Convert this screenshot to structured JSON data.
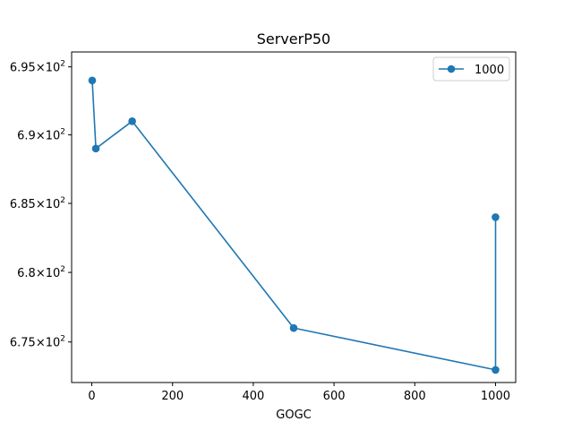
{
  "chart_data": {
    "type": "line",
    "title": "ServerP50",
    "xlabel": "GOGC",
    "ylabel": "",
    "x_ticks": [
      "0",
      "200",
      "400",
      "600",
      "800",
      "1000"
    ],
    "y_ticks": [
      {
        "mantissa": "6.75",
        "base": "10",
        "exp": "2",
        "value": 675
      },
      {
        "mantissa": "6.8",
        "base": "10",
        "exp": "2",
        "value": 680
      },
      {
        "mantissa": "6.85",
        "base": "10",
        "exp": "2",
        "value": 685
      },
      {
        "mantissa": "6.9",
        "base": "10",
        "exp": "2",
        "value": 690
      },
      {
        "mantissa": "6.95",
        "base": "10",
        "exp": "2",
        "value": 695
      }
    ],
    "xlim": [
      -50,
      1050
    ],
    "ylim": [
      672.1,
      696.1
    ],
    "y_scale": "log",
    "grid": false,
    "legend_position": "top-right",
    "series": [
      {
        "name": "1000",
        "color": "#1f77b4",
        "marker": "circle",
        "x": [
          1,
          10,
          100,
          500,
          1000,
          1000
        ],
        "y": [
          694,
          689,
          691,
          676,
          673,
          684
        ]
      }
    ]
  }
}
